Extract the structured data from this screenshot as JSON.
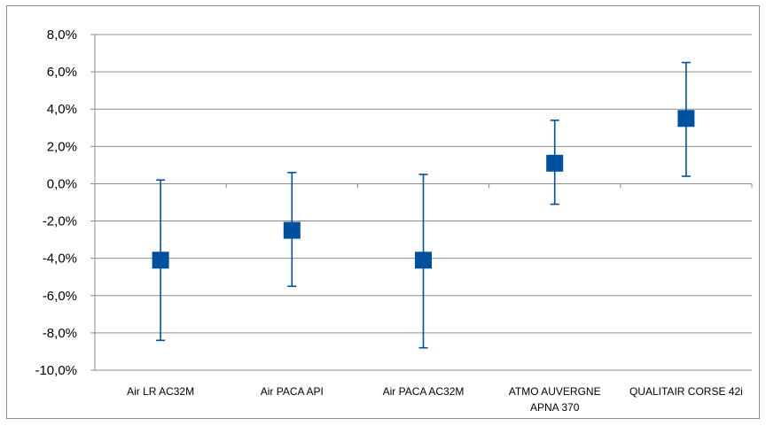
{
  "chart_data": {
    "type": "scatter",
    "subtype": "error-bar",
    "categories": [
      "Air LR AC32M",
      "Air PACA API",
      "Air PACA AC32M",
      "ATMO AUVERGNE APNA 370",
      "QUALITAIR CORSE 42i"
    ],
    "category_label_lines": [
      [
        "Air LR AC32M"
      ],
      [
        "Air PACA API"
      ],
      [
        "Air PACA AC32M"
      ],
      [
        "ATMO AUVERGNE",
        "APNA 370"
      ],
      [
        "QUALITAIR CORSE 42i"
      ]
    ],
    "series": [
      {
        "values": [
          -4.1,
          -2.5,
          -4.1,
          1.1,
          3.5
        ],
        "error_low": [
          -8.4,
          -5.5,
          -8.8,
          -1.1,
          0.4
        ],
        "error_high": [
          0.2,
          0.6,
          0.5,
          3.4,
          6.5
        ],
        "color": "#0050a0",
        "marker": "square"
      }
    ],
    "title": "",
    "xlabel": "",
    "ylabel": "",
    "ylim": [
      -10,
      8
    ],
    "yticks": [
      8,
      6,
      4,
      2,
      0,
      -2,
      -4,
      -6,
      -8,
      -10
    ],
    "ytick_labels": [
      "8,0%",
      "6,0%",
      "4,0%",
      "2,0%",
      "0,0%",
      "-2,0%",
      "-4,0%",
      "-6,0%",
      "-8,0%",
      "-10,0%"
    ],
    "grid": true,
    "legend": "none"
  }
}
